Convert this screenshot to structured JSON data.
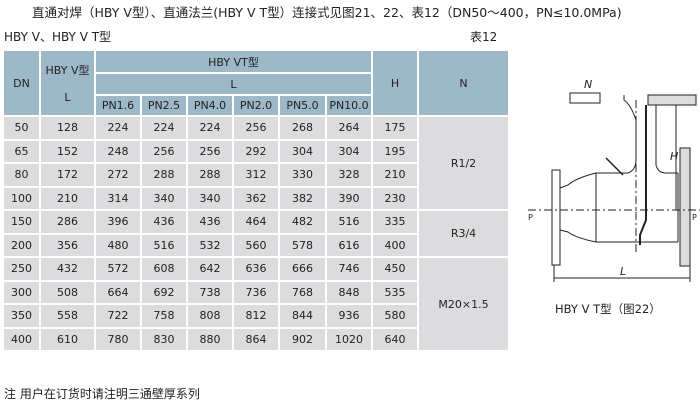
{
  "title": "直通对焊（HBY V型）、直通法兰(HBY V T型）连接式见图21、22、表12（DN50～400，PN≤10.0MPa)",
  "subtitle": "HBY V、HBY V T型",
  "table_no": "表12",
  "table": {
    "headers": {
      "dn": "DN",
      "v_type": "HBY V型",
      "v_l": "L",
      "vt_type": "HBY VT型",
      "vt_l": "L",
      "pn": [
        "PN1.6",
        "PN2.5",
        "PN4.0",
        "PN2.0",
        "PN5.0",
        "PN10.0"
      ],
      "h": "H",
      "n": "N"
    },
    "rows": [
      [
        "50",
        "128",
        "224",
        "224",
        "224",
        "256",
        "268",
        "264",
        "175"
      ],
      [
        "65",
        "152",
        "248",
        "256",
        "256",
        "292",
        "304",
        "304",
        "195"
      ],
      [
        "80",
        "172",
        "272",
        "288",
        "288",
        "312",
        "330",
        "328",
        "210"
      ],
      [
        "100",
        "210",
        "314",
        "340",
        "340",
        "362",
        "382",
        "390",
        "230"
      ],
      [
        "150",
        "286",
        "396",
        "436",
        "436",
        "464",
        "482",
        "516",
        "335"
      ],
      [
        "200",
        "356",
        "480",
        "516",
        "532",
        "560",
        "578",
        "616",
        "400"
      ],
      [
        "250",
        "432",
        "572",
        "608",
        "642",
        "636",
        "666",
        "746",
        "450"
      ],
      [
        "300",
        "508",
        "664",
        "692",
        "738",
        "736",
        "768",
        "848",
        "535"
      ],
      [
        "350",
        "558",
        "722",
        "758",
        "808",
        "812",
        "844",
        "936",
        "580"
      ],
      [
        "400",
        "610",
        "780",
        "830",
        "880",
        "864",
        "902",
        "1020",
        "640"
      ]
    ],
    "n_values": [
      "R1/2",
      "R3/4",
      "M20×1.5"
    ]
  },
  "note": "注 用户在订货时请注明三通壁厚系列",
  "figure": {
    "caption": "HBY Ⅴ T型（图22）",
    "labels": {
      "n": "N",
      "h": "H",
      "l": "L",
      "p_left": "P",
      "p_right": "P"
    }
  },
  "colors": {
    "header_bg": "#9db9c7",
    "cell_bg": "#dcdcdf"
  }
}
